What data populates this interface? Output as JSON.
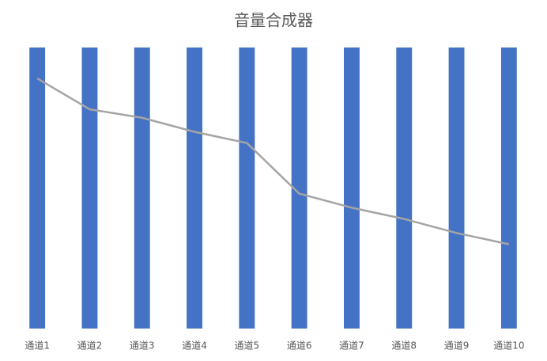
{
  "chart_data": {
    "type": "bar",
    "title": "音量合成器",
    "categories": [
      "通道1",
      "通道2",
      "通道3",
      "通道4",
      "通道5",
      "通道6",
      "通道7",
      "通道8",
      "通道9",
      "通道10"
    ],
    "ylim": [
      0,
      100
    ],
    "series": [
      {
        "type": "bar",
        "color": "#4472c4",
        "values": [
          100,
          100,
          100,
          100,
          100,
          100,
          100,
          100,
          100,
          100
        ]
      },
      {
        "type": "line",
        "color": "#a5a5a5",
        "values": [
          89,
          78,
          75,
          70,
          66,
          48,
          43,
          39,
          34,
          30
        ]
      }
    ]
  }
}
